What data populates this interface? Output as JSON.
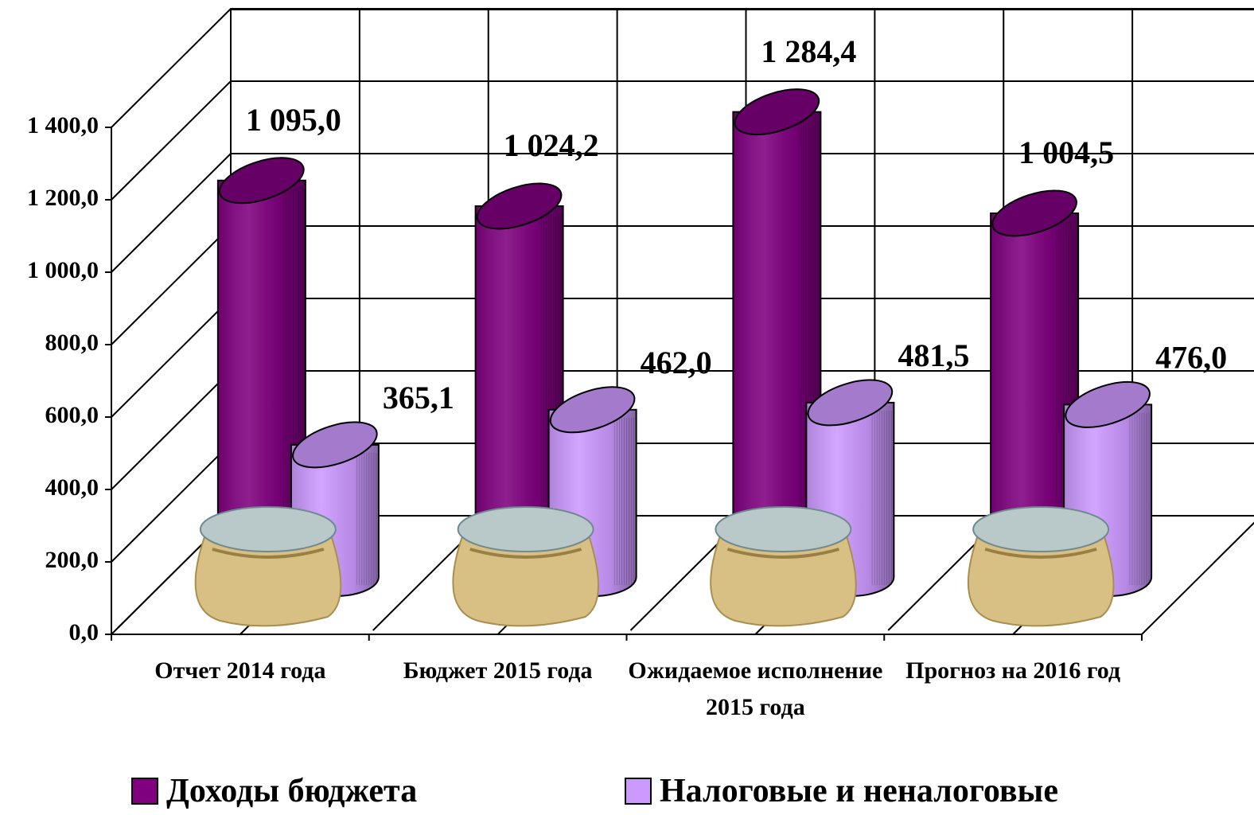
{
  "chart_data": {
    "type": "bar3d",
    "categories": [
      "Отчет 2014 года",
      "Бюджет 2015 года",
      "Ожидаемое исполнение 2015 года",
      "Прогноз на 2016 год"
    ],
    "series": [
      {
        "name": "Доходы бюджета",
        "color": "#800080",
        "values": [
          1095.0,
          1024.2,
          1284.4,
          1004.5
        ],
        "value_labels": [
          "1 095,0",
          "1 024,2",
          "1 284,4",
          "1 004,5"
        ]
      },
      {
        "name": "Налоговые и неналоговые",
        "color": "#cc99ff",
        "values": [
          365.1,
          462.0,
          481.5,
          476.0
        ],
        "value_labels": [
          "365,1",
          "462,0",
          "481,5",
          "476,0"
        ]
      }
    ],
    "ylim": [
      0,
      1400
    ],
    "yticks": [
      {
        "value": 0,
        "label": "0,0"
      },
      {
        "value": 200,
        "label": "200,0"
      },
      {
        "value": 400,
        "label": "400,0"
      },
      {
        "value": 600,
        "label": "600,0"
      },
      {
        "value": 800,
        "label": "800,0"
      },
      {
        "value": 1000,
        "label": "1 000,0"
      },
      {
        "value": 1200,
        "label": "1 200,0"
      },
      {
        "value": 1400,
        "label": "1 400,0"
      }
    ],
    "grid": true
  }
}
